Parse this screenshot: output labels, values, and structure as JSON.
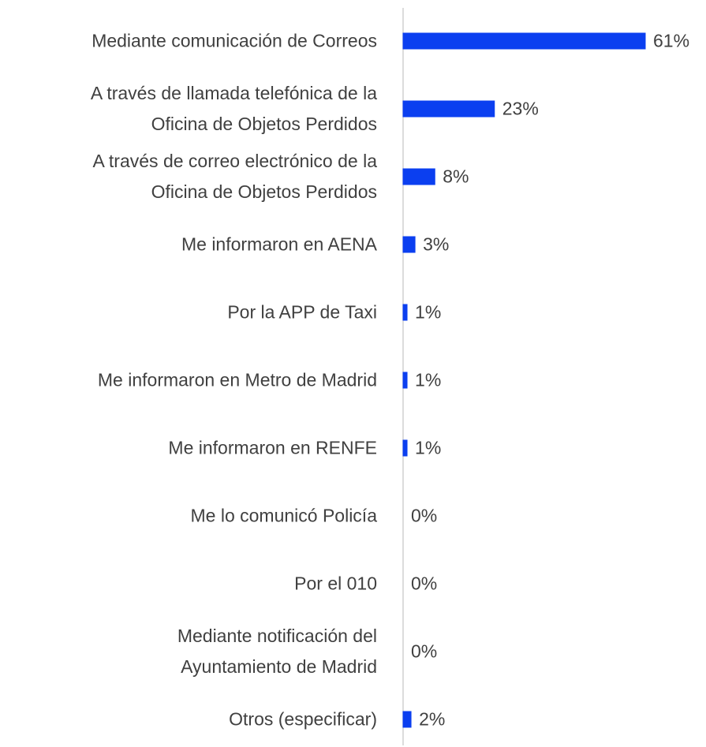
{
  "chart_data": {
    "type": "bar",
    "orientation": "horizontal",
    "categories": [
      "Mediante comunicación de Correos",
      "A través de llamada telefónica de la\nOficina de Objetos Perdidos",
      "A través de correo electrónico de la\nOficina de Objetos Perdidos",
      "Me informaron en AENA",
      "Por la APP de Taxi",
      "Me informaron en Metro de Madrid",
      "Me informaron en RENFE",
      "Me lo comunicó Policía",
      "Por el 010",
      "Mediante notificación del\nAyuntamiento de Madrid",
      "Otros (especificar)"
    ],
    "values": [
      61,
      23,
      8,
      3,
      1,
      1,
      1,
      0,
      0,
      0,
      2
    ],
    "value_labels": [
      "61%",
      "23%",
      "8%",
      "3%",
      "1%",
      "1%",
      "1%",
      "0%",
      "0%",
      "0%",
      "2%"
    ],
    "color": "#0b3ff0"
  }
}
